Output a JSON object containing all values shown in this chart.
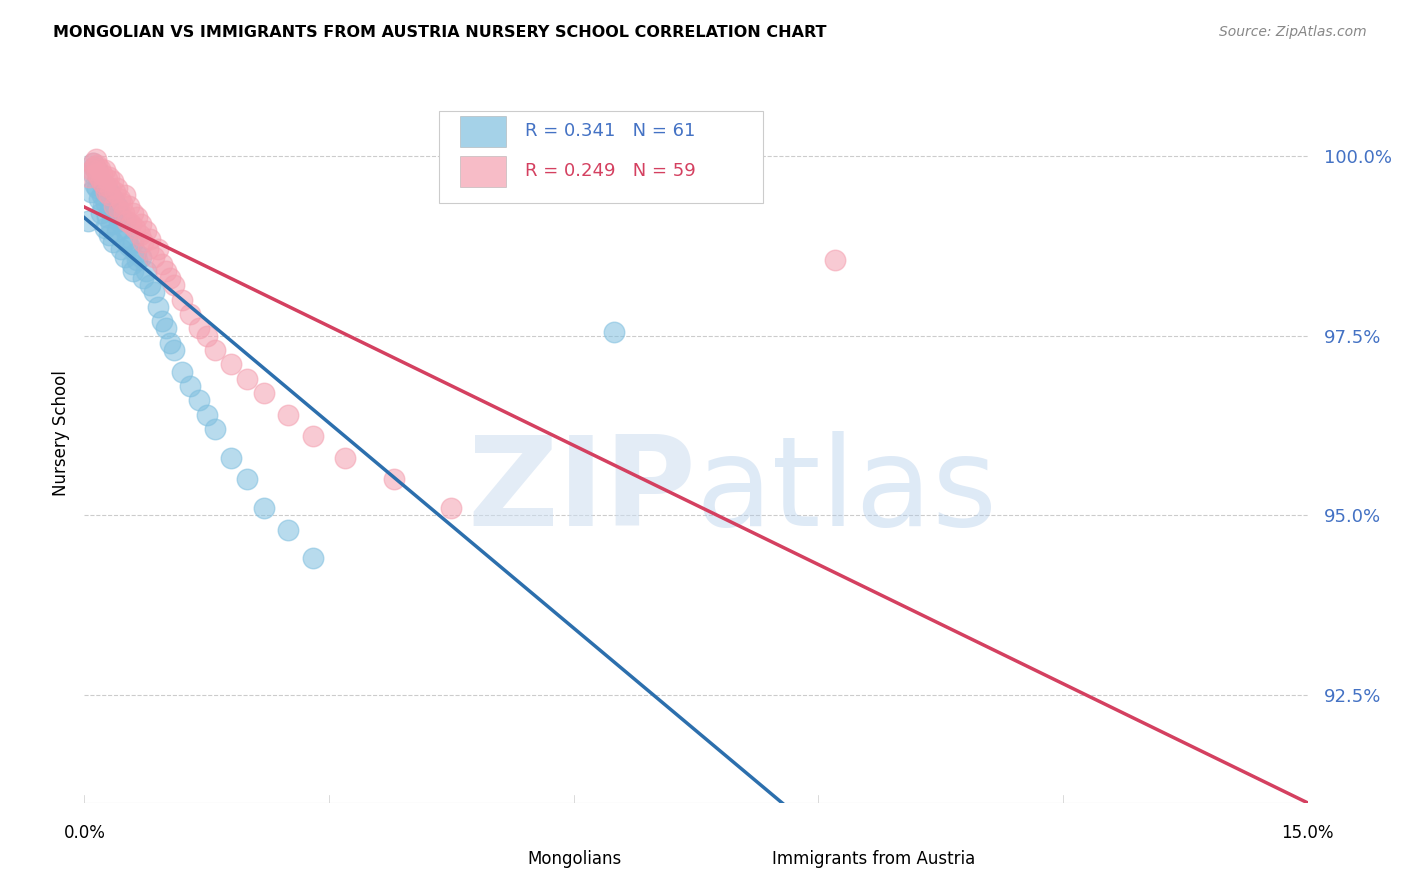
{
  "title": "MONGOLIAN VS IMMIGRANTS FROM AUSTRIA NURSERY SCHOOL CORRELATION CHART",
  "source": "Source: ZipAtlas.com",
  "ylabel": "Nursery School",
  "ytick_vals": [
    92.5,
    95.0,
    97.5,
    100.0
  ],
  "ytick_labels": [
    "92.5%",
    "95.0%",
    "97.5%",
    "100.0%"
  ],
  "xlim": [
    0.0,
    15.0
  ],
  "ylim": [
    91.0,
    101.3
  ],
  "mongolian_R": 0.341,
  "mongolian_N": 61,
  "austria_R": 0.249,
  "austria_N": 59,
  "mongolian_color": "#7fbfdf",
  "austria_color": "#f4a0b0",
  "mongolian_line_color": "#2c6fad",
  "austria_line_color": "#d44060",
  "mongolian_x": [
    0.05,
    0.08,
    0.1,
    0.1,
    0.12,
    0.13,
    0.15,
    0.15,
    0.17,
    0.18,
    0.2,
    0.2,
    0.22,
    0.23,
    0.25,
    0.25,
    0.27,
    0.28,
    0.3,
    0.3,
    0.32,
    0.33,
    0.35,
    0.35,
    0.38,
    0.4,
    0.4,
    0.42,
    0.45,
    0.45,
    0.48,
    0.5,
    0.5,
    0.52,
    0.55,
    0.58,
    0.6,
    0.6,
    0.63,
    0.65,
    0.7,
    0.72,
    0.75,
    0.8,
    0.85,
    0.9,
    0.95,
    1.0,
    1.05,
    1.1,
    1.2,
    1.3,
    1.4,
    1.5,
    1.6,
    1.8,
    2.0,
    2.2,
    2.5,
    2.8,
    6.5
  ],
  "mongolian_y": [
    99.1,
    99.5,
    99.75,
    99.9,
    99.85,
    99.6,
    99.8,
    99.55,
    99.7,
    99.4,
    99.65,
    99.2,
    99.45,
    99.3,
    99.6,
    99.0,
    99.35,
    99.15,
    99.5,
    98.9,
    99.25,
    99.05,
    99.4,
    98.8,
    99.2,
    99.3,
    98.95,
    99.1,
    99.15,
    98.7,
    99.0,
    99.1,
    98.6,
    98.85,
    98.75,
    98.5,
    98.8,
    98.4,
    98.65,
    98.55,
    98.6,
    98.3,
    98.4,
    98.2,
    98.1,
    97.9,
    97.7,
    97.6,
    97.4,
    97.3,
    97.0,
    96.8,
    96.6,
    96.4,
    96.2,
    95.8,
    95.5,
    95.1,
    94.8,
    94.4,
    97.55
  ],
  "austria_x": [
    0.06,
    0.09,
    0.11,
    0.12,
    0.14,
    0.15,
    0.16,
    0.18,
    0.19,
    0.2,
    0.22,
    0.24,
    0.25,
    0.26,
    0.28,
    0.3,
    0.3,
    0.32,
    0.35,
    0.36,
    0.38,
    0.4,
    0.42,
    0.44,
    0.46,
    0.48,
    0.5,
    0.52,
    0.55,
    0.57,
    0.6,
    0.62,
    0.65,
    0.68,
    0.7,
    0.72,
    0.75,
    0.78,
    0.8,
    0.85,
    0.9,
    0.95,
    1.0,
    1.05,
    1.1,
    1.2,
    1.3,
    1.4,
    1.5,
    1.6,
    1.8,
    2.0,
    2.2,
    2.5,
    2.8,
    3.2,
    3.8,
    4.5,
    9.2
  ],
  "austria_y": [
    99.7,
    99.8,
    99.9,
    99.85,
    99.95,
    99.75,
    99.88,
    99.7,
    99.82,
    99.65,
    99.75,
    99.6,
    99.8,
    99.5,
    99.68,
    99.7,
    99.45,
    99.55,
    99.65,
    99.3,
    99.5,
    99.55,
    99.25,
    99.4,
    99.35,
    99.2,
    99.45,
    99.1,
    99.3,
    99.05,
    99.2,
    99.0,
    99.15,
    98.9,
    99.05,
    98.8,
    98.95,
    98.7,
    98.85,
    98.6,
    98.7,
    98.5,
    98.4,
    98.3,
    98.2,
    98.0,
    97.8,
    97.6,
    97.5,
    97.3,
    97.1,
    96.9,
    96.7,
    96.4,
    96.1,
    95.8,
    95.5,
    95.1,
    98.55
  ]
}
